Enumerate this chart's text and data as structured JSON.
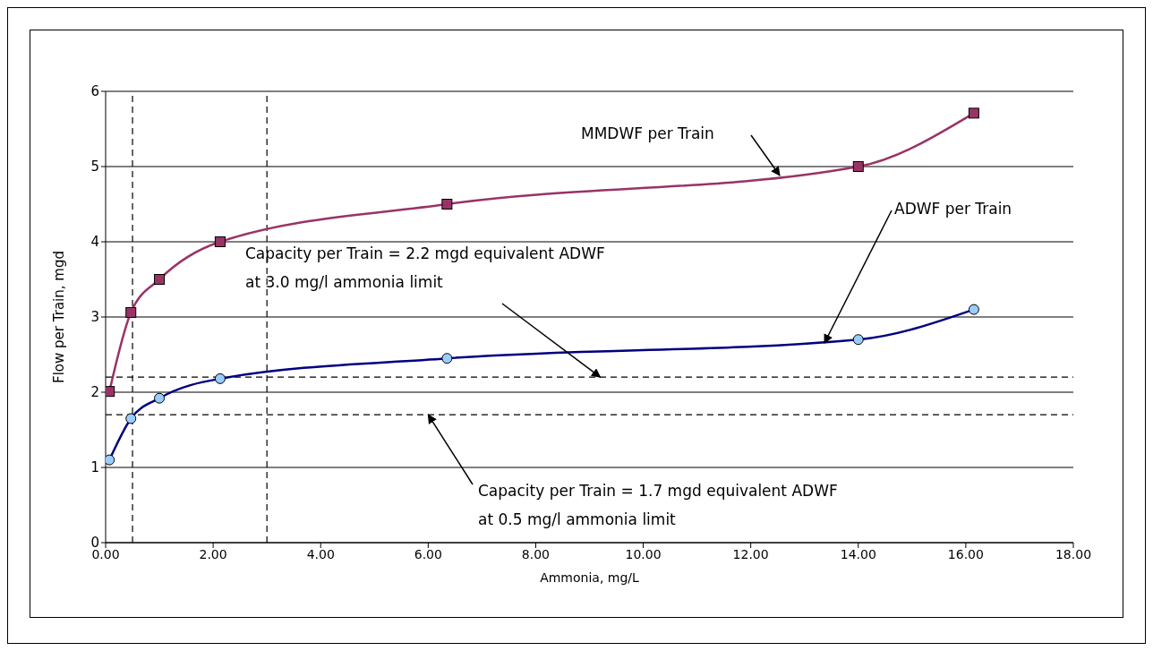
{
  "chart_data": {
    "type": "line",
    "xlabel": "Ammonia, mg/L",
    "ylabel": "Flow per Train, mgd",
    "x": [
      0.07,
      0.47,
      1.0,
      2.13,
      6.35,
      14.0,
      16.15
    ],
    "series": [
      {
        "name": "MMDWF per Train",
        "color": "#993366",
        "colors": [
          "#993366",
          "#993366",
          "#993366",
          "#993366",
          "#993366",
          "#993366",
          "#993366"
        ],
        "marker": "square",
        "values": [
          2.01,
          3.06,
          3.5,
          4.0,
          4.5,
          5.0,
          5.71
        ]
      },
      {
        "name": "ADWF per Train",
        "color": "#000080",
        "colors": [
          "#99ccff",
          "#99ccff",
          "#99ccff",
          "#99ccff",
          "#99ccff",
          "#99ccff",
          "#99ccff"
        ],
        "marker": "circle",
        "values": [
          1.1,
          1.65,
          1.92,
          2.18,
          2.45,
          2.7,
          3.1
        ]
      }
    ],
    "xlim": [
      0,
      18
    ],
    "xticks": [
      {
        "value": 0,
        "label": "0.00"
      },
      {
        "value": 2,
        "label": "2.00"
      },
      {
        "value": 4,
        "label": "4.00"
      },
      {
        "value": 6,
        "label": "6.00"
      },
      {
        "value": 8,
        "label": "8.00"
      },
      {
        "value": 10,
        "label": "10.00"
      },
      {
        "value": 12,
        "label": "12.00"
      },
      {
        "value": 14,
        "label": "14.00"
      },
      {
        "value": 16,
        "label": "16.00"
      },
      {
        "value": 18,
        "label": "18.00"
      }
    ],
    "ylim": [
      0,
      6
    ],
    "yticks": [
      0,
      1,
      2,
      3,
      4,
      5,
      6
    ],
    "grid": "y",
    "legend": false,
    "line_style": "solid",
    "ref_lines": [
      {
        "axis": "y",
        "value": 2.2,
        "color": "#000000",
        "line_style": "dashed"
      },
      {
        "axis": "y",
        "value": 1.7,
        "color": "#000000",
        "line_style": "dashed"
      },
      {
        "axis": "x",
        "value": 0.5,
        "color": "#000000",
        "line_style": "dashed"
      },
      {
        "axis": "x",
        "value": 3.0,
        "color": "#000000",
        "line_style": "dashed"
      }
    ],
    "annotations": [
      {
        "text": "Capacity per Train = 2.2 mgd equivalent ADWF\nat 3.0 mg/l ammonia limit",
        "x": 9.2,
        "y": 2.2
      },
      {
        "text": "Capacity per Train = 1.7 mgd equivalent ADWF\nat 0.5 mg/l ammonia limit",
        "x": 6.0,
        "y": 1.7
      }
    ]
  }
}
